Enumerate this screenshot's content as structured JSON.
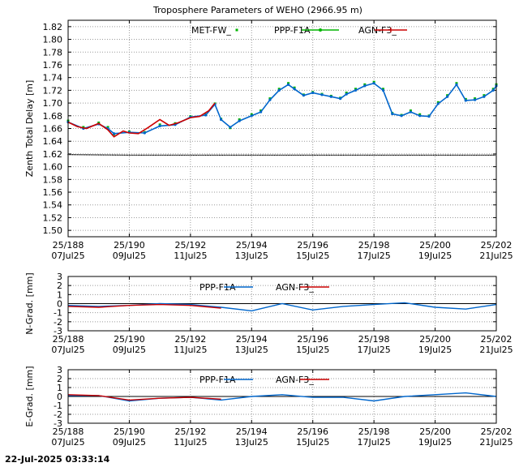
{
  "footer": {
    "timestamp": "22-Jul-2025 03:33:14"
  },
  "colors": {
    "met": "#000000",
    "ppp": "#00b400",
    "agn": "#0066cc",
    "agn3": "#cc0000"
  },
  "chart_data": [
    {
      "type": "scatter",
      "title": "Troposphere Parameters of WEHO (2966.95 m)",
      "xlabel": "",
      "ylabel": "Zenth Total Delay [m]",
      "xlim": [
        188,
        202
      ],
      "ylim": [
        1.49,
        1.83
      ],
      "grid": true,
      "legend": "top-center",
      "xticks": [
        {
          "x": 188,
          "doy": "25/188",
          "date": "07Jul25"
        },
        {
          "x": 190,
          "doy": "25/190",
          "date": "09Jul25"
        },
        {
          "x": 192,
          "doy": "25/192",
          "date": "11Jul25"
        },
        {
          "x": 194,
          "doy": "25/194",
          "date": "13Jul25"
        },
        {
          "x": 196,
          "doy": "25/196",
          "date": "15Jul25"
        },
        {
          "x": 198,
          "doy": "25/198",
          "date": "17Jul25"
        },
        {
          "x": 200,
          "doy": "25/200",
          "date": "19Jul25"
        },
        {
          "x": 202,
          "doy": "25/202",
          "date": "21Jul25"
        }
      ],
      "yticks": [
        "1.50",
        "1.52",
        "1.54",
        "1.56",
        "1.58",
        "1.60",
        "1.62",
        "1.64",
        "1.66",
        "1.68",
        "1.70",
        "1.72",
        "1.74",
        "1.76",
        "1.78",
        "1.80",
        "1.82"
      ],
      "series": [
        {
          "name": "MET-FW_",
          "color": "#000000",
          "style": "dots",
          "x": [
            188,
            190,
            202
          ],
          "y": [
            1.619,
            1.618,
            1.618
          ]
        },
        {
          "name": "PPP-F1A",
          "color": "#00b400",
          "style": "dots",
          "x": [
            188.0,
            188.5,
            189.0,
            189.3,
            189.5,
            190.0,
            190.5,
            191.0,
            191.5,
            192.0,
            192.5,
            192.8,
            193.0,
            193.3,
            193.6,
            194.0,
            194.3,
            194.6,
            194.9,
            195.2,
            195.4,
            195.7,
            196.0,
            196.3,
            196.6,
            196.9,
            197.1,
            197.4,
            197.7,
            198.0,
            198.3,
            198.6,
            198.9,
            199.2,
            199.5,
            199.8,
            200.1,
            200.4,
            200.7,
            201.0,
            201.3,
            201.6,
            201.9,
            202.0
          ],
          "y": [
            1.672,
            1.662,
            1.669,
            1.662,
            1.651,
            1.655,
            1.654,
            1.666,
            1.668,
            1.679,
            1.682,
            1.699,
            1.675,
            1.661,
            1.674,
            1.682,
            1.688,
            1.707,
            1.722,
            1.731,
            1.724,
            1.713,
            1.717,
            1.714,
            1.711,
            1.708,
            1.716,
            1.722,
            1.729,
            1.733,
            1.722,
            1.684,
            1.681,
            1.688,
            1.682,
            1.68,
            1.701,
            1.712,
            1.731,
            1.706,
            1.707,
            1.712,
            1.722,
            1.729
          ]
        },
        {
          "name": "AGN-F3_",
          "color": "#0066cc",
          "style": "line-dots",
          "x": [
            188.0,
            188.5,
            189.0,
            189.3,
            189.5,
            190.0,
            190.5,
            191.0,
            191.5,
            192.0,
            192.5,
            192.8,
            193.0,
            193.3,
            193.6,
            194.0,
            194.3,
            194.6,
            194.9,
            195.2,
            195.4,
            195.7,
            196.0,
            196.3,
            196.6,
            196.9,
            197.1,
            197.4,
            197.7,
            198.0,
            198.3,
            198.6,
            198.9,
            199.2,
            199.5,
            199.8,
            200.1,
            200.4,
            200.7,
            201.0,
            201.3,
            201.6,
            201.9,
            202.0
          ],
          "y": [
            1.67,
            1.66,
            1.667,
            1.66,
            1.652,
            1.654,
            1.653,
            1.664,
            1.666,
            1.678,
            1.681,
            1.698,
            1.674,
            1.662,
            1.672,
            1.68,
            1.686,
            1.705,
            1.72,
            1.729,
            1.722,
            1.712,
            1.716,
            1.713,
            1.71,
            1.707,
            1.714,
            1.72,
            1.727,
            1.731,
            1.72,
            1.683,
            1.68,
            1.686,
            1.68,
            1.679,
            1.699,
            1.71,
            1.729,
            1.704,
            1.705,
            1.71,
            1.72,
            1.727
          ]
        },
        {
          "name": "",
          "color": "#cc0000",
          "style": "line",
          "x": [
            188.0,
            188.3,
            188.6,
            189.0,
            189.3,
            189.5,
            189.8,
            190.0,
            190.3,
            190.6,
            191.0,
            191.3,
            191.6,
            192.0,
            192.3,
            192.6,
            192.8
          ],
          "y": [
            1.67,
            1.663,
            1.66,
            1.668,
            1.658,
            1.647,
            1.656,
            1.653,
            1.652,
            1.661,
            1.674,
            1.665,
            1.669,
            1.677,
            1.679,
            1.688,
            1.7
          ]
        }
      ]
    },
    {
      "type": "line",
      "ylabel": "N-Grad. [mm]",
      "xlim": [
        188,
        202
      ],
      "ylim": [
        -3,
        3
      ],
      "grid": true,
      "legend": "top-center",
      "yticks": [
        "3",
        "2",
        "1",
        "0",
        "-1",
        "-2",
        "-3"
      ],
      "xticks": [
        {
          "x": 188,
          "doy": "25/188",
          "date": "07Jul25"
        },
        {
          "x": 190,
          "doy": "25/190",
          "date": "09Jul25"
        },
        {
          "x": 192,
          "doy": "25/192",
          "date": "11Jul25"
        },
        {
          "x": 194,
          "doy": "25/194",
          "date": "13Jul25"
        },
        {
          "x": 196,
          "doy": "25/196",
          "date": "15Jul25"
        },
        {
          "x": 198,
          "doy": "25/198",
          "date": "17Jul25"
        },
        {
          "x": 200,
          "doy": "25/200",
          "date": "19Jul25"
        },
        {
          "x": 202,
          "doy": "25/202",
          "date": "21Jul25"
        }
      ],
      "series": [
        {
          "name": "PPP-F1A",
          "color": "#0066cc",
          "x": [
            188,
            189,
            190,
            191,
            192,
            193,
            194,
            195,
            196,
            197,
            198,
            199,
            200,
            201,
            202
          ],
          "y": [
            -0.2,
            -0.3,
            -0.2,
            0.0,
            -0.1,
            -0.4,
            -0.8,
            0.0,
            -0.7,
            -0.3,
            -0.1,
            0.1,
            -0.4,
            -0.6,
            -0.1
          ]
        },
        {
          "name": "AGN-F3_",
          "color": "#cc0000",
          "x": [
            188,
            189,
            190,
            191,
            192,
            193
          ],
          "y": [
            -0.3,
            -0.4,
            -0.2,
            -0.1,
            -0.2,
            -0.5
          ]
        }
      ]
    },
    {
      "type": "line",
      "ylabel": "E-Grad. [mm]",
      "xlim": [
        188,
        202
      ],
      "ylim": [
        -3,
        3
      ],
      "grid": true,
      "legend": "top-center",
      "yticks": [
        "3",
        "2",
        "1",
        "0",
        "-1",
        "-2",
        "-3"
      ],
      "xticks": [
        {
          "x": 188,
          "doy": "25/188",
          "date": "07Jul25"
        },
        {
          "x": 190,
          "doy": "25/190",
          "date": "09Jul25"
        },
        {
          "x": 192,
          "doy": "25/192",
          "date": "11Jul25"
        },
        {
          "x": 194,
          "doy": "25/194",
          "date": "13Jul25"
        },
        {
          "x": 196,
          "doy": "25/196",
          "date": "15Jul25"
        },
        {
          "x": 198,
          "doy": "25/198",
          "date": "17Jul25"
        },
        {
          "x": 200,
          "doy": "25/200",
          "date": "19Jul25"
        },
        {
          "x": 202,
          "doy": "25/202",
          "date": "21Jul25"
        }
      ],
      "series": [
        {
          "name": "PPP-F1A",
          "color": "#0066cc",
          "x": [
            188,
            189,
            190,
            191,
            192,
            193,
            194,
            195,
            196,
            197,
            198,
            199,
            200,
            201,
            202
          ],
          "y": [
            0.1,
            0.1,
            -0.5,
            -0.2,
            -0.1,
            -0.4,
            0.0,
            0.2,
            -0.1,
            -0.1,
            -0.5,
            0.0,
            0.2,
            0.4,
            0.0
          ]
        },
        {
          "name": "AGN-F3_",
          "color": "#cc0000",
          "x": [
            188,
            189,
            190,
            191,
            192,
            193
          ],
          "y": [
            0.2,
            0.1,
            -0.4,
            -0.2,
            -0.1,
            -0.3
          ]
        }
      ]
    }
  ]
}
